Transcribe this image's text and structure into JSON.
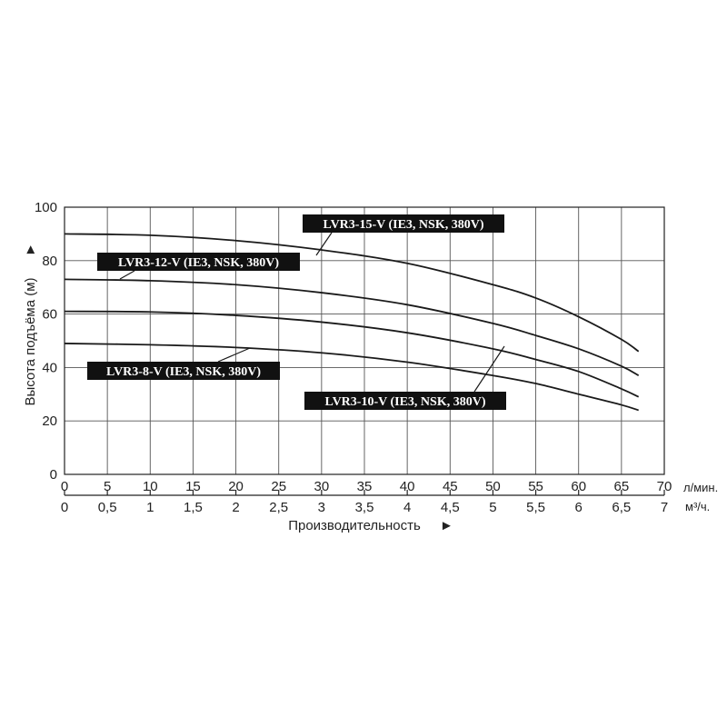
{
  "chart_data": {
    "type": "line",
    "title": "",
    "ylabel": "Высота подъёма (м)",
    "ylabel_arrow": "►",
    "xlabel": "Производительность",
    "xlabel_arrow": "►",
    "ylim": [
      0,
      100
    ],
    "yticks": [
      0,
      20,
      40,
      60,
      80,
      100
    ],
    "xlim": [
      0,
      70
    ],
    "xticks": [
      0,
      5,
      10,
      15,
      20,
      25,
      30,
      35,
      40,
      45,
      50,
      55,
      60,
      65,
      70
    ],
    "x_unit": "л/мин.",
    "x2_lim": [
      0,
      7
    ],
    "x2_ticks": [
      "0",
      "0,5",
      "1",
      "1,5",
      "2",
      "2,5",
      "3",
      "3,5",
      "4",
      "4,5",
      "5",
      "5,5",
      "6",
      "6,5",
      "7"
    ],
    "x2_unit": "м³/ч.",
    "grid": true,
    "series": [
      {
        "name": "LVR3-15-V (IE3, NSK, 380V)",
        "points": [
          [
            0,
            90
          ],
          [
            10,
            89.5
          ],
          [
            20,
            87.5
          ],
          [
            30,
            84
          ],
          [
            40,
            79
          ],
          [
            50,
            71
          ],
          [
            55,
            66
          ],
          [
            60,
            59
          ],
          [
            65,
            50.5
          ],
          [
            67,
            46
          ]
        ]
      },
      {
        "name": "LVR3-12-V (IE3, NSK, 380V)",
        "points": [
          [
            0,
            73
          ],
          [
            10,
            72.5
          ],
          [
            20,
            71
          ],
          [
            30,
            68
          ],
          [
            40,
            63.5
          ],
          [
            50,
            56.5
          ],
          [
            55,
            52
          ],
          [
            60,
            47
          ],
          [
            65,
            40.5
          ],
          [
            67,
            37
          ]
        ]
      },
      {
        "name": "LVR3-10-V (IE3, NSK, 380V)",
        "points": [
          [
            0,
            61
          ],
          [
            10,
            60.8
          ],
          [
            20,
            59.5
          ],
          [
            30,
            57
          ],
          [
            40,
            53
          ],
          [
            50,
            47
          ],
          [
            55,
            43
          ],
          [
            60,
            38.5
          ],
          [
            65,
            32
          ],
          [
            67,
            29
          ]
        ]
      },
      {
        "name": "LVR3-8-V (IE3, NSK, 380V)",
        "points": [
          [
            0,
            49
          ],
          [
            10,
            48.5
          ],
          [
            20,
            47.5
          ],
          [
            30,
            45.5
          ],
          [
            40,
            42
          ],
          [
            50,
            37
          ],
          [
            55,
            34
          ],
          [
            60,
            30
          ],
          [
            65,
            26
          ],
          [
            67,
            24
          ]
        ]
      }
    ]
  }
}
